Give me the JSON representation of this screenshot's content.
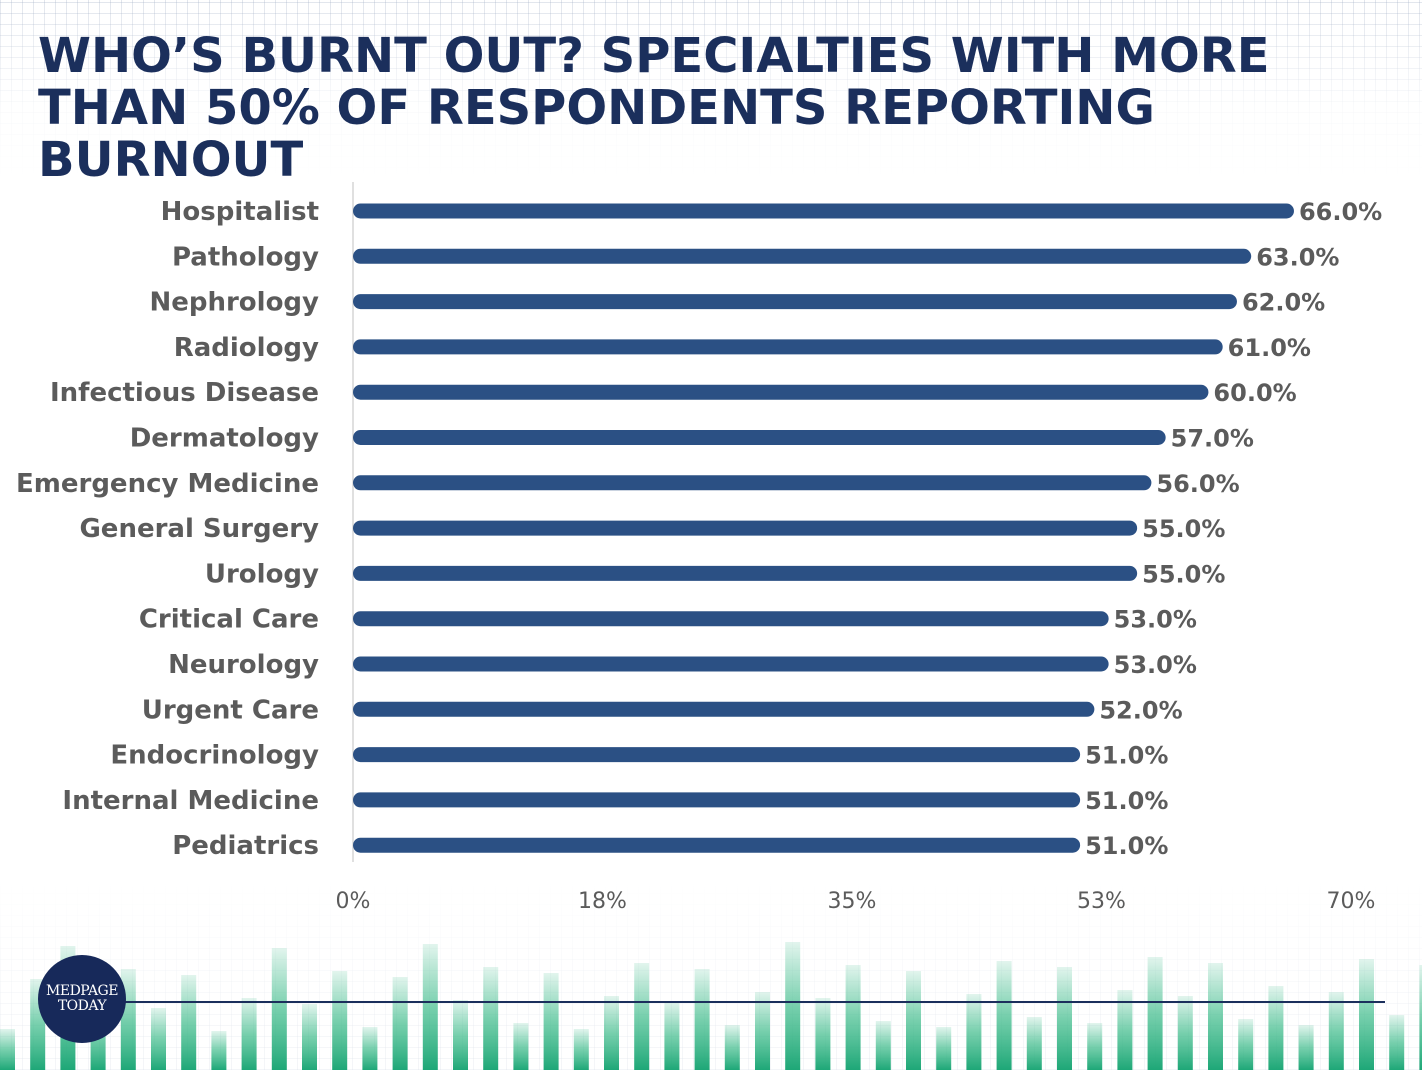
{
  "title": "WHO’S BURNT OUT? SPECIALTIES WITH MORE THAN 50% OF RESPONDENTS REPORTING BURNOUT",
  "brand": {
    "line1": "MEDPAGE",
    "line2": "TODAY"
  },
  "colors": {
    "bar": "#2b5084",
    "title": "#1b2f5c",
    "label": "#5b5b5b",
    "footer_green": "#3dbb8a"
  },
  "chart_data": {
    "type": "bar",
    "orientation": "horizontal",
    "categories": [
      "Hospitalist",
      "Pathology",
      "Nephrology",
      "Radiology",
      "Infectious Disease",
      "Dermatology",
      "Emergency Medicine",
      "General Surgery",
      "Urology",
      "Critical Care",
      "Neurology",
      "Urgent Care",
      "Endocrinology",
      "Internal Medicine",
      "Pediatrics"
    ],
    "values": [
      66.0,
      63.0,
      62.0,
      61.0,
      60.0,
      57.0,
      56.0,
      55.0,
      55.0,
      53.0,
      53.0,
      52.0,
      51.0,
      51.0,
      51.0
    ],
    "value_labels": [
      "66.0%",
      "63.0%",
      "62.0%",
      "61.0%",
      "60.0%",
      "57.0%",
      "56.0%",
      "55.0%",
      "55.0%",
      "53.0%",
      "53.0%",
      "52.0%",
      "51.0%",
      "51.0%",
      "51.0%"
    ],
    "xlim": [
      0,
      70
    ],
    "ticks": [
      0,
      17.5,
      35,
      52.5,
      70
    ],
    "tick_labels": [
      "0%",
      "18%",
      "35%",
      "53%",
      "70%"
    ],
    "grid": false,
    "legend": "none"
  }
}
